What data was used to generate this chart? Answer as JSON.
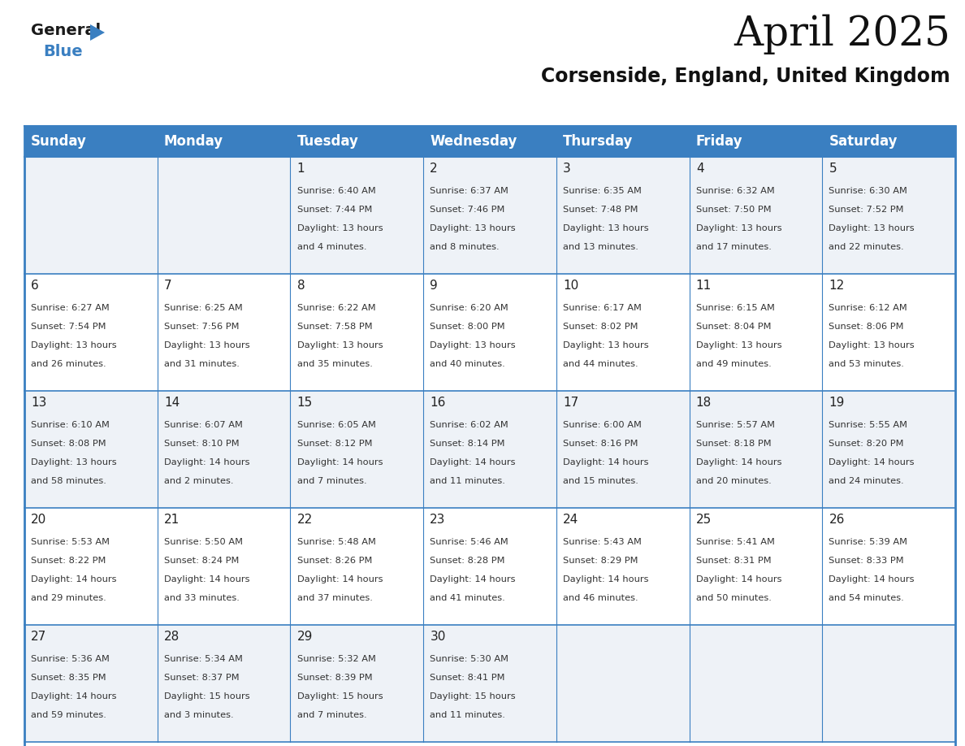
{
  "title": "April 2025",
  "subtitle": "Corsenside, England, United Kingdom",
  "header_bg": "#3a7fc1",
  "header_text_color": "#ffffff",
  "cell_bg_light": "#eef2f7",
  "cell_bg_white": "#ffffff",
  "border_color": "#3a7fc1",
  "text_color": "#333333",
  "day_num_color": "#222222",
  "day_headers": [
    "Sunday",
    "Monday",
    "Tuesday",
    "Wednesday",
    "Thursday",
    "Friday",
    "Saturday"
  ],
  "days": [
    {
      "day": 1,
      "col": 2,
      "row": 0,
      "sunrise": "6:40 AM",
      "sunset": "7:44 PM",
      "daylight_h": "13 hours",
      "daylight_m": "4 minutes."
    },
    {
      "day": 2,
      "col": 3,
      "row": 0,
      "sunrise": "6:37 AM",
      "sunset": "7:46 PM",
      "daylight_h": "13 hours",
      "daylight_m": "8 minutes."
    },
    {
      "day": 3,
      "col": 4,
      "row": 0,
      "sunrise": "6:35 AM",
      "sunset": "7:48 PM",
      "daylight_h": "13 hours",
      "daylight_m": "13 minutes."
    },
    {
      "day": 4,
      "col": 5,
      "row": 0,
      "sunrise": "6:32 AM",
      "sunset": "7:50 PM",
      "daylight_h": "13 hours",
      "daylight_m": "17 minutes."
    },
    {
      "day": 5,
      "col": 6,
      "row": 0,
      "sunrise": "6:30 AM",
      "sunset": "7:52 PM",
      "daylight_h": "13 hours",
      "daylight_m": "22 minutes."
    },
    {
      "day": 6,
      "col": 0,
      "row": 1,
      "sunrise": "6:27 AM",
      "sunset": "7:54 PM",
      "daylight_h": "13 hours",
      "daylight_m": "26 minutes."
    },
    {
      "day": 7,
      "col": 1,
      "row": 1,
      "sunrise": "6:25 AM",
      "sunset": "7:56 PM",
      "daylight_h": "13 hours",
      "daylight_m": "31 minutes."
    },
    {
      "day": 8,
      "col": 2,
      "row": 1,
      "sunrise": "6:22 AM",
      "sunset": "7:58 PM",
      "daylight_h": "13 hours",
      "daylight_m": "35 minutes."
    },
    {
      "day": 9,
      "col": 3,
      "row": 1,
      "sunrise": "6:20 AM",
      "sunset": "8:00 PM",
      "daylight_h": "13 hours",
      "daylight_m": "40 minutes."
    },
    {
      "day": 10,
      "col": 4,
      "row": 1,
      "sunrise": "6:17 AM",
      "sunset": "8:02 PM",
      "daylight_h": "13 hours",
      "daylight_m": "44 minutes."
    },
    {
      "day": 11,
      "col": 5,
      "row": 1,
      "sunrise": "6:15 AM",
      "sunset": "8:04 PM",
      "daylight_h": "13 hours",
      "daylight_m": "49 minutes."
    },
    {
      "day": 12,
      "col": 6,
      "row": 1,
      "sunrise": "6:12 AM",
      "sunset": "8:06 PM",
      "daylight_h": "13 hours",
      "daylight_m": "53 minutes."
    },
    {
      "day": 13,
      "col": 0,
      "row": 2,
      "sunrise": "6:10 AM",
      "sunset": "8:08 PM",
      "daylight_h": "13 hours",
      "daylight_m": "58 minutes."
    },
    {
      "day": 14,
      "col": 1,
      "row": 2,
      "sunrise": "6:07 AM",
      "sunset": "8:10 PM",
      "daylight_h": "14 hours",
      "daylight_m": "2 minutes."
    },
    {
      "day": 15,
      "col": 2,
      "row": 2,
      "sunrise": "6:05 AM",
      "sunset": "8:12 PM",
      "daylight_h": "14 hours",
      "daylight_m": "7 minutes."
    },
    {
      "day": 16,
      "col": 3,
      "row": 2,
      "sunrise": "6:02 AM",
      "sunset": "8:14 PM",
      "daylight_h": "14 hours",
      "daylight_m": "11 minutes."
    },
    {
      "day": 17,
      "col": 4,
      "row": 2,
      "sunrise": "6:00 AM",
      "sunset": "8:16 PM",
      "daylight_h": "14 hours",
      "daylight_m": "15 minutes."
    },
    {
      "day": 18,
      "col": 5,
      "row": 2,
      "sunrise": "5:57 AM",
      "sunset": "8:18 PM",
      "daylight_h": "14 hours",
      "daylight_m": "20 minutes."
    },
    {
      "day": 19,
      "col": 6,
      "row": 2,
      "sunrise": "5:55 AM",
      "sunset": "8:20 PM",
      "daylight_h": "14 hours",
      "daylight_m": "24 minutes."
    },
    {
      "day": 20,
      "col": 0,
      "row": 3,
      "sunrise": "5:53 AM",
      "sunset": "8:22 PM",
      "daylight_h": "14 hours",
      "daylight_m": "29 minutes."
    },
    {
      "day": 21,
      "col": 1,
      "row": 3,
      "sunrise": "5:50 AM",
      "sunset": "8:24 PM",
      "daylight_h": "14 hours",
      "daylight_m": "33 minutes."
    },
    {
      "day": 22,
      "col": 2,
      "row": 3,
      "sunrise": "5:48 AM",
      "sunset": "8:26 PM",
      "daylight_h": "14 hours",
      "daylight_m": "37 minutes."
    },
    {
      "day": 23,
      "col": 3,
      "row": 3,
      "sunrise": "5:46 AM",
      "sunset": "8:28 PM",
      "daylight_h": "14 hours",
      "daylight_m": "41 minutes."
    },
    {
      "day": 24,
      "col": 4,
      "row": 3,
      "sunrise": "5:43 AM",
      "sunset": "8:29 PM",
      "daylight_h": "14 hours",
      "daylight_m": "46 minutes."
    },
    {
      "day": 25,
      "col": 5,
      "row": 3,
      "sunrise": "5:41 AM",
      "sunset": "8:31 PM",
      "daylight_h": "14 hours",
      "daylight_m": "50 minutes."
    },
    {
      "day": 26,
      "col": 6,
      "row": 3,
      "sunrise": "5:39 AM",
      "sunset": "8:33 PM",
      "daylight_h": "14 hours",
      "daylight_m": "54 minutes."
    },
    {
      "day": 27,
      "col": 0,
      "row": 4,
      "sunrise": "5:36 AM",
      "sunset": "8:35 PM",
      "daylight_h": "14 hours",
      "daylight_m": "59 minutes."
    },
    {
      "day": 28,
      "col": 1,
      "row": 4,
      "sunrise": "5:34 AM",
      "sunset": "8:37 PM",
      "daylight_h": "15 hours",
      "daylight_m": "3 minutes."
    },
    {
      "day": 29,
      "col": 2,
      "row": 4,
      "sunrise": "5:32 AM",
      "sunset": "8:39 PM",
      "daylight_h": "15 hours",
      "daylight_m": "7 minutes."
    },
    {
      "day": 30,
      "col": 3,
      "row": 4,
      "sunrise": "5:30 AM",
      "sunset": "8:41 PM",
      "daylight_h": "15 hours",
      "daylight_m": "11 minutes."
    }
  ],
  "num_rows": 5,
  "num_cols": 7,
  "logo_general_color": "#1a1a1a",
  "logo_blue_color": "#3a7fc1",
  "title_fontsize": 36,
  "subtitle_fontsize": 17,
  "header_fontsize": 12,
  "day_num_fontsize": 11,
  "cell_text_fontsize": 8.2
}
